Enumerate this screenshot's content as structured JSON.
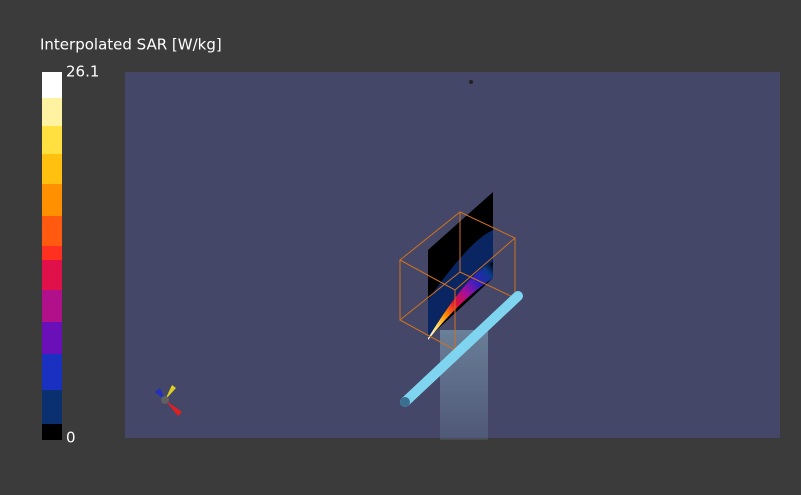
{
  "colorbar": {
    "title": "Interpolated SAR [W/kg]",
    "max": "26.1",
    "min": "0"
  }
}
